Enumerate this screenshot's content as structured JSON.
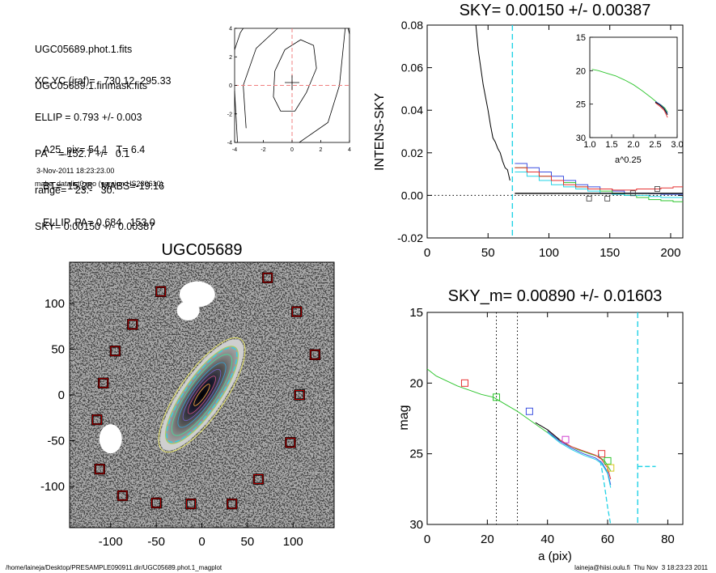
{
  "header": {
    "lines1": [
      "UGC05689.phot.1.fits",
      "UGC05689.1.finmask.fits"
    ],
    "lines2": [
      "XC,YC (iraf)=   730.12, 295.33",
      "ELLIP = 0.793 +/- 0.003",
      "PA    = 152.7 +/-   0.1",
      "range=   23.-   30.",
      "SKY= 0.00150 +/- 0.00387"
    ],
    "lines3": [
      "A25_pix= 54.1   T= 6.4",
      "BT=  15.28   MABS=-19.16",
      "ELLIP, PA= 0.684   153.0"
    ],
    "date": "3-Nov-2011 18:23:23.00",
    "program": "make_datalist0.pro (version HS230610)"
  },
  "footer": {
    "left": "/home/laineja/Desktop/PRESAMPLE090911.dir/UGC05689.phot.1_magplot",
    "right": "laineja@hiisi.oulu.fi  Thu Nov  3 18:23:23 2011"
  },
  "chart_data": [
    {
      "id": "contour",
      "type": "contour",
      "title": "",
      "xlim": [
        -4,
        4
      ],
      "ylim": [
        -4,
        4
      ],
      "xticks": [
        "-4",
        "-2",
        "0",
        "2",
        "4"
      ],
      "yticks": [
        "-4",
        "-2",
        "0",
        "2",
        "4"
      ],
      "center": [
        0,
        0.2
      ],
      "min": [
        0,
        0
      ],
      "contours": [
        [
          [
            -1.3,
            -0.8
          ],
          [
            -1.2,
            1.0
          ],
          [
            -0.5,
            2.5
          ],
          [
            0.6,
            3.2
          ],
          [
            1.5,
            2.8
          ],
          [
            1.7,
            1.2
          ],
          [
            1.0,
            -0.5
          ],
          [
            0.2,
            -1.8
          ],
          [
            -0.8,
            -1.8
          ],
          [
            -1.3,
            -0.8
          ]
        ],
        [
          [
            -3.2,
            -3.0
          ],
          [
            -3.4,
            0.0
          ],
          [
            -2.5,
            2.6
          ],
          [
            -1.0,
            4.0
          ]
        ],
        [
          [
            0.5,
            -4.0
          ],
          [
            2.5,
            -2.6
          ],
          [
            3.3,
            0.0
          ],
          [
            3.5,
            2.0
          ],
          [
            3.7,
            4.0
          ]
        ],
        [
          [
            -4.0,
            -0.4
          ],
          [
            -3.8,
            -4.0
          ]
        ],
        [
          [
            -4.0,
            2.5
          ],
          [
            -3.6,
            3.7
          ],
          [
            -3.4,
            4.0
          ]
        ],
        [
          [
            3.9,
            4.0
          ],
          [
            4.0,
            3.6
          ]
        ]
      ]
    },
    {
      "id": "sky",
      "type": "line",
      "title": "SKY= 0.00150 +/- 0.00387",
      "xlabel": "",
      "ylabel": "INTENS-SKY",
      "xlim": [
        0,
        210
      ],
      "ylim": [
        -0.02,
        0.08
      ],
      "xticks": [
        "0",
        "50",
        "100",
        "150",
        "200"
      ],
      "yticks": [
        "-0.02",
        "0.00",
        "0.02",
        "0.04",
        "0.06",
        "0.08"
      ],
      "vline": 70,
      "colors": {
        "black": "#000000",
        "blue": "#3a4fe0",
        "green": "#2ec52e",
        "red": "#e63232",
        "cyan": "#22d3e6"
      },
      "series": [
        {
          "color": "black",
          "step": false,
          "x": [
            40,
            42,
            44,
            46,
            48,
            50,
            52,
            54,
            56,
            58,
            60,
            62,
            64,
            66,
            68
          ],
          "y": [
            0.08,
            0.068,
            0.06,
            0.052,
            0.046,
            0.04,
            0.033,
            0.027,
            0.025,
            0.022,
            0.02,
            0.016,
            0.013,
            0.012,
            0.007
          ]
        },
        {
          "color": "blue",
          "step": true,
          "x": [
            72,
            82,
            92,
            102,
            112,
            122,
            132,
            142,
            152,
            162,
            172,
            182,
            192,
            202,
            210
          ],
          "y": [
            0.015,
            0.013,
            0.011,
            0.009,
            0.007,
            0.005,
            0.004,
            0.003,
            0.002,
            0.001,
            0.001,
            0.0008,
            0.0005,
            0.0005,
            0.0005
          ]
        },
        {
          "color": "green",
          "step": true,
          "x": [
            72,
            82,
            92,
            102,
            112,
            122,
            132,
            142,
            152,
            162,
            172,
            182,
            192,
            202,
            210
          ],
          "y": [
            0.013,
            0.011,
            0.009,
            0.007,
            0.006,
            0.004,
            0.003,
            0.002,
            0.001,
            0.0,
            -0.001,
            -0.002,
            -0.0025,
            -0.003,
            -0.003
          ]
        },
        {
          "color": "cyan",
          "step": true,
          "x": [
            72,
            82,
            92,
            102,
            112,
            122,
            132,
            142,
            152,
            162,
            172,
            182,
            192,
            202,
            210
          ],
          "y": [
            0.011,
            0.009,
            0.007,
            0.005,
            0.004,
            0.003,
            0.002,
            0.001,
            0.0005,
            0.0,
            0.0,
            -0.0005,
            -0.001,
            -0.001,
            -0.001
          ]
        },
        {
          "color": "red",
          "step": true,
          "x": [
            72,
            82,
            92,
            102,
            112,
            122,
            132,
            142,
            152,
            162,
            172,
            182,
            192,
            202,
            210
          ],
          "y": [
            0.013,
            0.011,
            0.009,
            0.007,
            0.005,
            0.004,
            0.003,
            0.003,
            0.0025,
            0.0025,
            0.003,
            0.003,
            0.0035,
            0.004,
            0.004
          ]
        }
      ],
      "squares": [
        {
          "x": 133,
          "y": -0.0015
        },
        {
          "x": 148,
          "y": -0.0015
        },
        {
          "x": 169,
          "y": 0.001
        },
        {
          "x": 189,
          "y": 0.003
        }
      ],
      "inset": {
        "xlabel": "a^0.25",
        "xlim": [
          1.0,
          3.0
        ],
        "ylim": [
          15,
          30
        ],
        "xticks": [
          "1.0",
          "1.5",
          "2.0",
          "2.5",
          "3.0"
        ],
        "yticks": [
          "15",
          "20",
          "25",
          "30"
        ],
        "series": [
          {
            "color": "green",
            "x": [
              1.05,
              1.2,
              1.4,
              1.6,
              1.8,
              2.0,
              2.2,
              2.4,
              2.55,
              2.65,
              2.72,
              2.78
            ],
            "y": [
              19.8,
              20.0,
              20.4,
              20.8,
              21.4,
              22.1,
              23.0,
              24.0,
              24.8,
              25.2,
              25.6,
              26.2
            ]
          },
          {
            "color": "blue",
            "x": [
              2.5,
              2.6,
              2.7,
              2.78
            ],
            "y": [
              24.6,
              25.0,
              25.6,
              26.4
            ]
          },
          {
            "color": "red",
            "x": [
              2.5,
              2.6,
              2.7,
              2.78
            ],
            "y": [
              24.8,
              25.3,
              25.9,
              27.0
            ]
          },
          {
            "color": "black",
            "x": [
              2.5,
              2.6,
              2.7,
              2.78
            ],
            "y": [
              24.7,
              25.1,
              25.7,
              26.6
            ]
          }
        ]
      }
    },
    {
      "id": "image",
      "type": "image",
      "title": "UGC05689",
      "xlim": [
        -145,
        145
      ],
      "ylim": [
        -145,
        145
      ],
      "xticks": [
        "-100",
        "-50",
        "0",
        "50",
        "100"
      ],
      "yticks": [
        "-100",
        "-50",
        "0",
        "50",
        "100"
      ],
      "markers": [
        [
          -45,
          113
        ],
        [
          72,
          128
        ],
        [
          -76,
          77
        ],
        [
          104,
          91
        ],
        [
          -95,
          48
        ],
        [
          124,
          44
        ],
        [
          -108,
          13
        ],
        [
          107,
          0
        ],
        [
          -115,
          -27
        ],
        [
          97,
          -52
        ],
        [
          -112,
          -81
        ],
        [
          62,
          -92
        ],
        [
          -87,
          -110
        ],
        [
          -50,
          -118
        ],
        [
          -12,
          -119
        ],
        [
          33,
          -119
        ]
      ],
      "holes": [
        [
          -5,
          110,
          22,
          16
        ],
        [
          -15,
          92,
          14,
          12
        ],
        [
          -100,
          -48,
          14,
          18
        ]
      ]
    },
    {
      "id": "mag",
      "type": "line",
      "title": "SKY_m=  0.00890 +/- 0.01603",
      "xlabel": "a (pix)",
      "ylabel": "mag",
      "xlim": [
        0,
        85
      ],
      "ylim": [
        30,
        15
      ],
      "xticks": [
        "0",
        "20",
        "40",
        "60",
        "80"
      ],
      "yticks": [
        "15",
        "20",
        "25",
        "30"
      ],
      "vlines_dotted": [
        23,
        30
      ],
      "cyan_dashed": {
        "x": [
          57,
          58,
          59,
          60,
          61
        ],
        "y": [
          25.0,
          26.0,
          27.3,
          28.8,
          30.0
        ]
      },
      "cyan_vline": 70,
      "cyan_hseg": {
        "x": [
          70,
          76
        ],
        "y": 25.9
      },
      "series": [
        {
          "color": "green",
          "x": [
            0,
            3,
            6,
            10,
            14,
            18,
            22,
            26,
            30,
            34,
            38,
            42,
            46,
            50,
            54,
            57,
            59,
            61
          ],
          "y": [
            19.0,
            19.5,
            19.8,
            20.2,
            20.5,
            20.8,
            21.0,
            21.5,
            22.0,
            22.6,
            23.2,
            23.8,
            24.3,
            24.7,
            25.0,
            25.2,
            25.5,
            26.2
          ]
        },
        {
          "color": "red",
          "x": [
            40,
            44,
            48,
            52,
            56,
            58,
            60,
            61
          ],
          "y": [
            23.3,
            24.0,
            24.5,
            24.8,
            25.1,
            25.4,
            26.0,
            26.8
          ]
        },
        {
          "color": "blue",
          "x": [
            40,
            44,
            48,
            52,
            56,
            58,
            60,
            61
          ],
          "y": [
            23.4,
            24.1,
            24.6,
            25.0,
            25.3,
            25.6,
            26.3,
            27.2
          ]
        },
        {
          "color": "cyan",
          "x": [
            40,
            44,
            48,
            52,
            56,
            58,
            60,
            61
          ],
          "y": [
            23.5,
            24.2,
            24.7,
            25.1,
            25.4,
            25.7,
            26.4,
            27.4
          ]
        },
        {
          "color": "black",
          "x": [
            36,
            40,
            44
          ],
          "y": [
            22.8,
            23.3,
            24.0
          ]
        }
      ],
      "squares": [
        {
          "x": 12.5,
          "y": 20.0,
          "color": "red"
        },
        {
          "x": 23,
          "y": 21.0,
          "color": "green"
        },
        {
          "x": 34,
          "y": 22.0,
          "color": "blue"
        },
        {
          "x": 46,
          "y": 24.0,
          "color": "magenta"
        },
        {
          "x": 58,
          "y": 25.0,
          "color": "red"
        },
        {
          "x": 60,
          "y": 25.5,
          "color": "green"
        },
        {
          "x": 61,
          "y": 26.0,
          "color": "yellow"
        }
      ]
    }
  ]
}
